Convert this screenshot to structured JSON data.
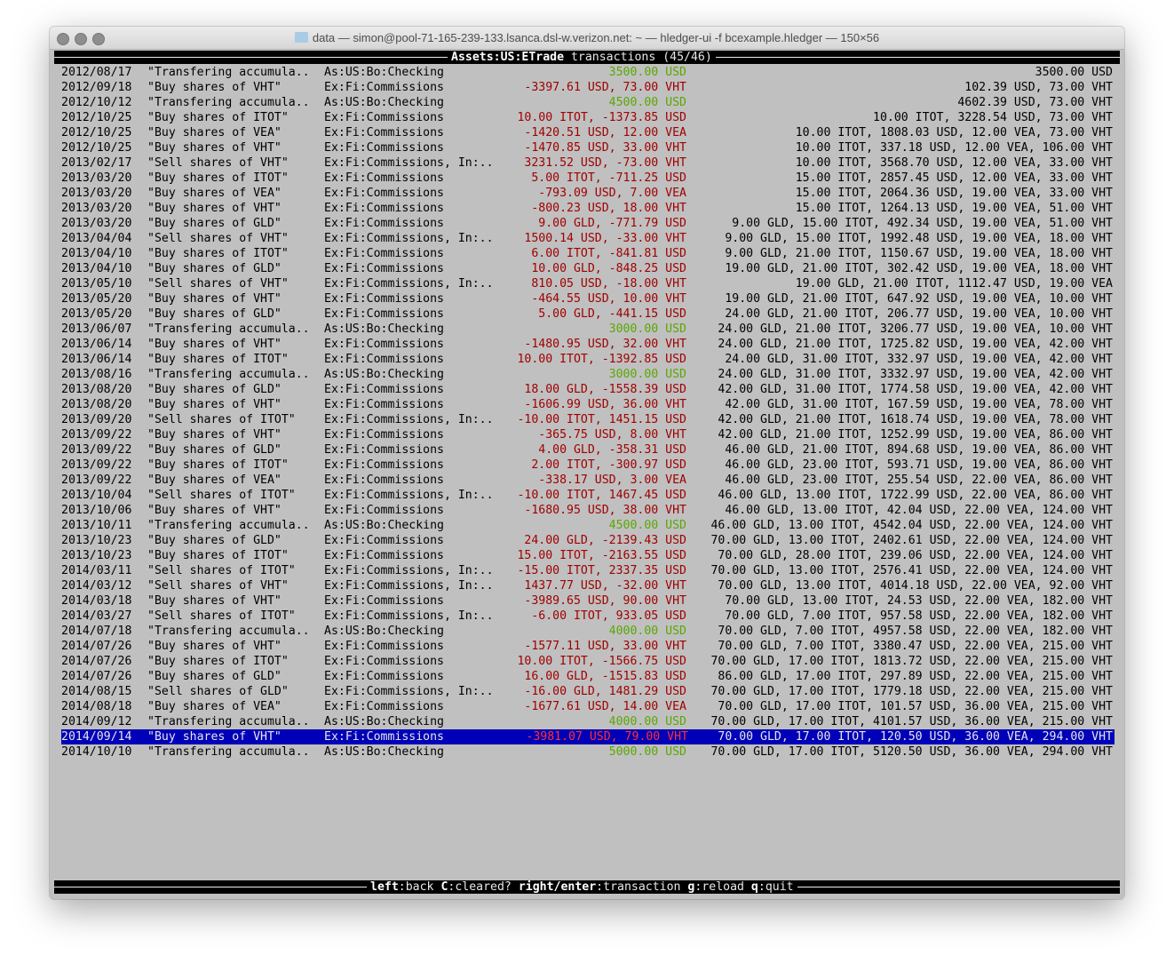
{
  "window": {
    "title": "data — simon@pool-71-165-239-133.lsanca.dsl-w.verizon.net: ~ — hledger-ui -f bcexample.hledger — 150×56"
  },
  "header": {
    "account": "Assets:US:ETrade",
    "label": " transactions (45/46)"
  },
  "colors": {
    "negative": "#a00000",
    "positive": "#5aa800",
    "selection": "#0000b8",
    "background": "#c0c0c0"
  },
  "selected_index": 44,
  "rows": [
    {
      "date": "2012/08/17",
      "desc": "\"Transfering accumula..",
      "account": "As:US:Bo:Checking",
      "change": "3500.00 USD",
      "positive": true,
      "balance": "3500.00 USD"
    },
    {
      "date": "2012/09/18",
      "desc": "\"Buy shares of VHT\"",
      "account": "Ex:Fi:Commissions",
      "change": "-3397.61 USD, 73.00 VHT",
      "positive": false,
      "balance": "102.39 USD, 73.00 VHT"
    },
    {
      "date": "2012/10/12",
      "desc": "\"Transfering accumula..",
      "account": "As:US:Bo:Checking",
      "change": "4500.00 USD",
      "positive": true,
      "balance": "4602.39 USD, 73.00 VHT"
    },
    {
      "date": "2012/10/25",
      "desc": "\"Buy shares of ITOT\"",
      "account": "Ex:Fi:Commissions",
      "change": "10.00 ITOT, -1373.85 USD",
      "positive": false,
      "balance": "10.00 ITOT, 3228.54 USD, 73.00 VHT"
    },
    {
      "date": "2012/10/25",
      "desc": "\"Buy shares of VEA\"",
      "account": "Ex:Fi:Commissions",
      "change": "-1420.51 USD, 12.00 VEA",
      "positive": false,
      "balance": "10.00 ITOT, 1808.03 USD, 12.00 VEA, 73.00 VHT"
    },
    {
      "date": "2012/10/25",
      "desc": "\"Buy shares of VHT\"",
      "account": "Ex:Fi:Commissions",
      "change": "-1470.85 USD, 33.00 VHT",
      "positive": false,
      "balance": "10.00 ITOT, 337.18 USD, 12.00 VEA, 106.00 VHT"
    },
    {
      "date": "2013/02/17",
      "desc": "\"Sell shares of VHT\"",
      "account": "Ex:Fi:Commissions, In:..",
      "change": "3231.52 USD, -73.00 VHT",
      "positive": false,
      "balance": "10.00 ITOT, 3568.70 USD, 12.00 VEA, 33.00 VHT"
    },
    {
      "date": "2013/03/20",
      "desc": "\"Buy shares of ITOT\"",
      "account": "Ex:Fi:Commissions",
      "change": "5.00 ITOT, -711.25 USD",
      "positive": false,
      "balance": "15.00 ITOT, 2857.45 USD, 12.00 VEA, 33.00 VHT"
    },
    {
      "date": "2013/03/20",
      "desc": "\"Buy shares of VEA\"",
      "account": "Ex:Fi:Commissions",
      "change": "-793.09 USD, 7.00 VEA",
      "positive": false,
      "balance": "15.00 ITOT, 2064.36 USD, 19.00 VEA, 33.00 VHT"
    },
    {
      "date": "2013/03/20",
      "desc": "\"Buy shares of VHT\"",
      "account": "Ex:Fi:Commissions",
      "change": "-800.23 USD, 18.00 VHT",
      "positive": false,
      "balance": "15.00 ITOT, 1264.13 USD, 19.00 VEA, 51.00 VHT"
    },
    {
      "date": "2013/03/20",
      "desc": "\"Buy shares of GLD\"",
      "account": "Ex:Fi:Commissions",
      "change": "9.00 GLD, -771.79 USD",
      "positive": false,
      "balance": "9.00 GLD, 15.00 ITOT, 492.34 USD, 19.00 VEA, 51.00 VHT"
    },
    {
      "date": "2013/04/04",
      "desc": "\"Sell shares of VHT\"",
      "account": "Ex:Fi:Commissions, In:..",
      "change": "1500.14 USD, -33.00 VHT",
      "positive": false,
      "balance": "9.00 GLD, 15.00 ITOT, 1992.48 USD, 19.00 VEA, 18.00 VHT"
    },
    {
      "date": "2013/04/10",
      "desc": "\"Buy shares of ITOT\"",
      "account": "Ex:Fi:Commissions",
      "change": "6.00 ITOT, -841.81 USD",
      "positive": false,
      "balance": "9.00 GLD, 21.00 ITOT, 1150.67 USD, 19.00 VEA, 18.00 VHT"
    },
    {
      "date": "2013/04/10",
      "desc": "\"Buy shares of GLD\"",
      "account": "Ex:Fi:Commissions",
      "change": "10.00 GLD, -848.25 USD",
      "positive": false,
      "balance": "19.00 GLD, 21.00 ITOT, 302.42 USD, 19.00 VEA, 18.00 VHT"
    },
    {
      "date": "2013/05/10",
      "desc": "\"Sell shares of VHT\"",
      "account": "Ex:Fi:Commissions, In:..",
      "change": "810.05 USD, -18.00 VHT",
      "positive": false,
      "balance": "19.00 GLD, 21.00 ITOT, 1112.47 USD, 19.00 VEA"
    },
    {
      "date": "2013/05/20",
      "desc": "\"Buy shares of VHT\"",
      "account": "Ex:Fi:Commissions",
      "change": "-464.55 USD, 10.00 VHT",
      "positive": false,
      "balance": "19.00 GLD, 21.00 ITOT, 647.92 USD, 19.00 VEA, 10.00 VHT"
    },
    {
      "date": "2013/05/20",
      "desc": "\"Buy shares of GLD\"",
      "account": "Ex:Fi:Commissions",
      "change": "5.00 GLD, -441.15 USD",
      "positive": false,
      "balance": "24.00 GLD, 21.00 ITOT, 206.77 USD, 19.00 VEA, 10.00 VHT"
    },
    {
      "date": "2013/06/07",
      "desc": "\"Transfering accumula..",
      "account": "As:US:Bo:Checking",
      "change": "3000.00 USD",
      "positive": true,
      "balance": "24.00 GLD, 21.00 ITOT, 3206.77 USD, 19.00 VEA, 10.00 VHT"
    },
    {
      "date": "2013/06/14",
      "desc": "\"Buy shares of VHT\"",
      "account": "Ex:Fi:Commissions",
      "change": "-1480.95 USD, 32.00 VHT",
      "positive": false,
      "balance": "24.00 GLD, 21.00 ITOT, 1725.82 USD, 19.00 VEA, 42.00 VHT"
    },
    {
      "date": "2013/06/14",
      "desc": "\"Buy shares of ITOT\"",
      "account": "Ex:Fi:Commissions",
      "change": "10.00 ITOT, -1392.85 USD",
      "positive": false,
      "balance": "24.00 GLD, 31.00 ITOT, 332.97 USD, 19.00 VEA, 42.00 VHT"
    },
    {
      "date": "2013/08/16",
      "desc": "\"Transfering accumula..",
      "account": "As:US:Bo:Checking",
      "change": "3000.00 USD",
      "positive": true,
      "balance": "24.00 GLD, 31.00 ITOT, 3332.97 USD, 19.00 VEA, 42.00 VHT"
    },
    {
      "date": "2013/08/20",
      "desc": "\"Buy shares of GLD\"",
      "account": "Ex:Fi:Commissions",
      "change": "18.00 GLD, -1558.39 USD",
      "positive": false,
      "balance": "42.00 GLD, 31.00 ITOT, 1774.58 USD, 19.00 VEA, 42.00 VHT"
    },
    {
      "date": "2013/08/20",
      "desc": "\"Buy shares of VHT\"",
      "account": "Ex:Fi:Commissions",
      "change": "-1606.99 USD, 36.00 VHT",
      "positive": false,
      "balance": "42.00 GLD, 31.00 ITOT, 167.59 USD, 19.00 VEA, 78.00 VHT"
    },
    {
      "date": "2013/09/20",
      "desc": "\"Sell shares of ITOT\"",
      "account": "Ex:Fi:Commissions, In:..",
      "change": "-10.00 ITOT, 1451.15 USD",
      "positive": false,
      "balance": "42.00 GLD, 21.00 ITOT, 1618.74 USD, 19.00 VEA, 78.00 VHT"
    },
    {
      "date": "2013/09/22",
      "desc": "\"Buy shares of VHT\"",
      "account": "Ex:Fi:Commissions",
      "change": "-365.75 USD, 8.00 VHT",
      "positive": false,
      "balance": "42.00 GLD, 21.00 ITOT, 1252.99 USD, 19.00 VEA, 86.00 VHT"
    },
    {
      "date": "2013/09/22",
      "desc": "\"Buy shares of GLD\"",
      "account": "Ex:Fi:Commissions",
      "change": "4.00 GLD, -358.31 USD",
      "positive": false,
      "balance": "46.00 GLD, 21.00 ITOT, 894.68 USD, 19.00 VEA, 86.00 VHT"
    },
    {
      "date": "2013/09/22",
      "desc": "\"Buy shares of ITOT\"",
      "account": "Ex:Fi:Commissions",
      "change": "2.00 ITOT, -300.97 USD",
      "positive": false,
      "balance": "46.00 GLD, 23.00 ITOT, 593.71 USD, 19.00 VEA, 86.00 VHT"
    },
    {
      "date": "2013/09/22",
      "desc": "\"Buy shares of VEA\"",
      "account": "Ex:Fi:Commissions",
      "change": "-338.17 USD, 3.00 VEA",
      "positive": false,
      "balance": "46.00 GLD, 23.00 ITOT, 255.54 USD, 22.00 VEA, 86.00 VHT"
    },
    {
      "date": "2013/10/04",
      "desc": "\"Sell shares of ITOT\"",
      "account": "Ex:Fi:Commissions, In:..",
      "change": "-10.00 ITOT, 1467.45 USD",
      "positive": false,
      "balance": "46.00 GLD, 13.00 ITOT, 1722.99 USD, 22.00 VEA, 86.00 VHT"
    },
    {
      "date": "2013/10/06",
      "desc": "\"Buy shares of VHT\"",
      "account": "Ex:Fi:Commissions",
      "change": "-1680.95 USD, 38.00 VHT",
      "positive": false,
      "balance": "46.00 GLD, 13.00 ITOT, 42.04 USD, 22.00 VEA, 124.00 VHT"
    },
    {
      "date": "2013/10/11",
      "desc": "\"Transfering accumula..",
      "account": "As:US:Bo:Checking",
      "change": "4500.00 USD",
      "positive": true,
      "balance": "46.00 GLD, 13.00 ITOT, 4542.04 USD, 22.00 VEA, 124.00 VHT"
    },
    {
      "date": "2013/10/23",
      "desc": "\"Buy shares of GLD\"",
      "account": "Ex:Fi:Commissions",
      "change": "24.00 GLD, -2139.43 USD",
      "positive": false,
      "balance": "70.00 GLD, 13.00 ITOT, 2402.61 USD, 22.00 VEA, 124.00 VHT"
    },
    {
      "date": "2013/10/23",
      "desc": "\"Buy shares of ITOT\"",
      "account": "Ex:Fi:Commissions",
      "change": "15.00 ITOT, -2163.55 USD",
      "positive": false,
      "balance": "70.00 GLD, 28.00 ITOT, 239.06 USD, 22.00 VEA, 124.00 VHT"
    },
    {
      "date": "2014/03/11",
      "desc": "\"Sell shares of ITOT\"",
      "account": "Ex:Fi:Commissions, In:..",
      "change": "-15.00 ITOT, 2337.35 USD",
      "positive": false,
      "balance": "70.00 GLD, 13.00 ITOT, 2576.41 USD, 22.00 VEA, 124.00 VHT"
    },
    {
      "date": "2014/03/12",
      "desc": "\"Sell shares of VHT\"",
      "account": "Ex:Fi:Commissions, In:..",
      "change": "1437.77 USD, -32.00 VHT",
      "positive": false,
      "balance": "70.00 GLD, 13.00 ITOT, 4014.18 USD, 22.00 VEA, 92.00 VHT"
    },
    {
      "date": "2014/03/18",
      "desc": "\"Buy shares of VHT\"",
      "account": "Ex:Fi:Commissions",
      "change": "-3989.65 USD, 90.00 VHT",
      "positive": false,
      "balance": "70.00 GLD, 13.00 ITOT, 24.53 USD, 22.00 VEA, 182.00 VHT"
    },
    {
      "date": "2014/03/27",
      "desc": "\"Sell shares of ITOT\"",
      "account": "Ex:Fi:Commissions, In:..",
      "change": "-6.00 ITOT, 933.05 USD",
      "positive": false,
      "balance": "70.00 GLD, 7.00 ITOT, 957.58 USD, 22.00 VEA, 182.00 VHT"
    },
    {
      "date": "2014/07/18",
      "desc": "\"Transfering accumula..",
      "account": "As:US:Bo:Checking",
      "change": "4000.00 USD",
      "positive": true,
      "balance": "70.00 GLD, 7.00 ITOT, 4957.58 USD, 22.00 VEA, 182.00 VHT"
    },
    {
      "date": "2014/07/26",
      "desc": "\"Buy shares of VHT\"",
      "account": "Ex:Fi:Commissions",
      "change": "-1577.11 USD, 33.00 VHT",
      "positive": false,
      "balance": "70.00 GLD, 7.00 ITOT, 3380.47 USD, 22.00 VEA, 215.00 VHT"
    },
    {
      "date": "2014/07/26",
      "desc": "\"Buy shares of ITOT\"",
      "account": "Ex:Fi:Commissions",
      "change": "10.00 ITOT, -1566.75 USD",
      "positive": false,
      "balance": "70.00 GLD, 17.00 ITOT, 1813.72 USD, 22.00 VEA, 215.00 VHT"
    },
    {
      "date": "2014/07/26",
      "desc": "\"Buy shares of GLD\"",
      "account": "Ex:Fi:Commissions",
      "change": "16.00 GLD, -1515.83 USD",
      "positive": false,
      "balance": "86.00 GLD, 17.00 ITOT, 297.89 USD, 22.00 VEA, 215.00 VHT"
    },
    {
      "date": "2014/08/15",
      "desc": "\"Sell shares of GLD\"",
      "account": "Ex:Fi:Commissions, In:..",
      "change": "-16.00 GLD, 1481.29 USD",
      "positive": false,
      "balance": "70.00 GLD, 17.00 ITOT, 1779.18 USD, 22.00 VEA, 215.00 VHT"
    },
    {
      "date": "2014/08/18",
      "desc": "\"Buy shares of VEA\"",
      "account": "Ex:Fi:Commissions",
      "change": "-1677.61 USD, 14.00 VEA",
      "positive": false,
      "balance": "70.00 GLD, 17.00 ITOT, 101.57 USD, 36.00 VEA, 215.00 VHT"
    },
    {
      "date": "2014/09/12",
      "desc": "\"Transfering accumula..",
      "account": "As:US:Bo:Checking",
      "change": "4000.00 USD",
      "positive": true,
      "balance": "70.00 GLD, 17.00 ITOT, 4101.57 USD, 36.00 VEA, 215.00 VHT"
    },
    {
      "date": "2014/09/14",
      "desc": "\"Buy shares of VHT\"",
      "account": "Ex:Fi:Commissions",
      "change": "-3981.07 USD, 79.00 VHT",
      "positive": false,
      "balance": "70.00 GLD, 17.00 ITOT, 120.50 USD, 36.00 VEA, 294.00 VHT"
    },
    {
      "date": "2014/10/10",
      "desc": "\"Transfering accumula..",
      "account": "As:US:Bo:Checking",
      "change": "5000.00 USD",
      "positive": true,
      "balance": "70.00 GLD, 17.00 ITOT, 5120.50 USD, 36.00 VEA, 294.00 VHT"
    }
  ],
  "footer": {
    "keys": [
      {
        "key": "left",
        "action": "back"
      },
      {
        "key": "C",
        "action": "cleared?"
      },
      {
        "key": "right/enter",
        "action": "transaction"
      },
      {
        "key": "g",
        "action": "reload"
      },
      {
        "key": "q",
        "action": "quit"
      }
    ]
  }
}
